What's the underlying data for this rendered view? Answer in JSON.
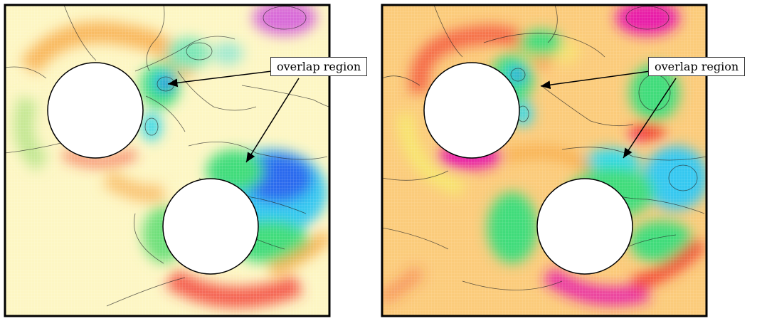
{
  "figure": {
    "panels": [
      {
        "id": "left",
        "label": "overlap region",
        "palette": "light"
      },
      {
        "id": "right",
        "label": "overlap region",
        "palette": "saturated"
      }
    ],
    "colors": {
      "frame": "#000000",
      "cylinder_fill": "#ffffff",
      "background_left": "#fdf6c3",
      "background_right": "#fbcb7a",
      "low_pressure": "#1f3fd6",
      "mid_low": "#36d8e8",
      "mid": "#3fdc7a",
      "high": "#f23a2f",
      "very_high": "#e81ca8",
      "orange": "#f7a23a",
      "yellow": "#f6ee6a",
      "contour": "#222222"
    }
  }
}
